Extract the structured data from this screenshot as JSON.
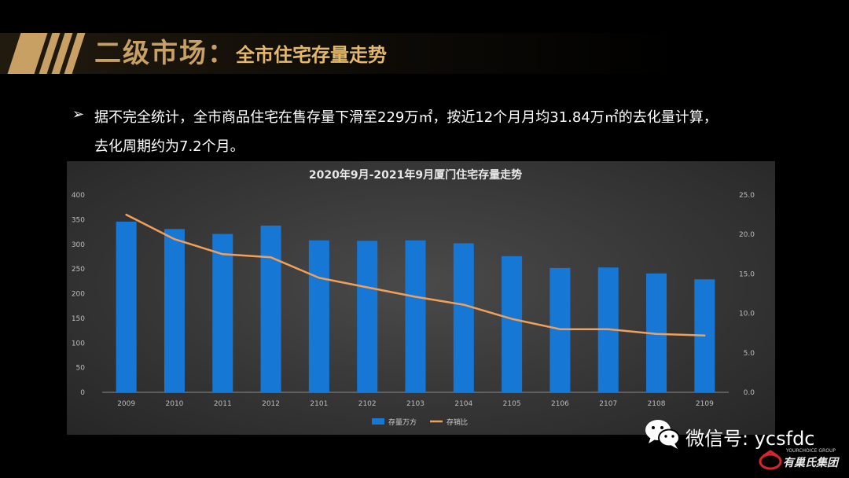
{
  "header": {
    "title": "二级市场：",
    "subtitle": "全市住宅存量走势"
  },
  "bullet": {
    "marker": "➢",
    "line1": "据不完全统计，全市商品住宅在售存量下滑至229万㎡，按近12个月月均31.84万㎡的去化量计算，",
    "line2": "去化周期约为7.2个月。"
  },
  "colors": {
    "accent": "#c9a063",
    "bar": "#1777d4",
    "line": "#f0a05a"
  },
  "chart_data": {
    "type": "bar",
    "title": "2020年9月-2021年9月厦门住宅存量走势",
    "categories": [
      "2009",
      "2010",
      "2011",
      "2012",
      "2101",
      "2102",
      "2103",
      "2104",
      "2105",
      "2106",
      "2107",
      "2108",
      "2109"
    ],
    "series": [
      {
        "name": "存量万方",
        "type": "bar",
        "axis": "left",
        "values": [
          346,
          331,
          321,
          338,
          308,
          307,
          308,
          302,
          276,
          252,
          253,
          241,
          229
        ]
      },
      {
        "name": "存销比",
        "type": "line",
        "axis": "right",
        "values": [
          22.5,
          19.4,
          17.5,
          17.1,
          14.5,
          13.3,
          12.1,
          11.1,
          9.3,
          8.0,
          8.0,
          7.4,
          7.2
        ]
      }
    ],
    "y_left": {
      "min": 0,
      "max": 400,
      "ticks": [
        "0",
        "50",
        "100",
        "150",
        "200",
        "250",
        "300",
        "350",
        "400"
      ]
    },
    "y_right": {
      "min": 0,
      "max": 25,
      "ticks": [
        "0.0",
        "5.0",
        "10.0",
        "15.0",
        "20.0",
        "25.0"
      ]
    },
    "legend_position": "bottom",
    "grid": false
  },
  "footer": {
    "wechat_text": "微信号: ycsfdc",
    "logo_small": "YOURCHOICE GROUP",
    "logo_name": "有巢氏集团"
  }
}
